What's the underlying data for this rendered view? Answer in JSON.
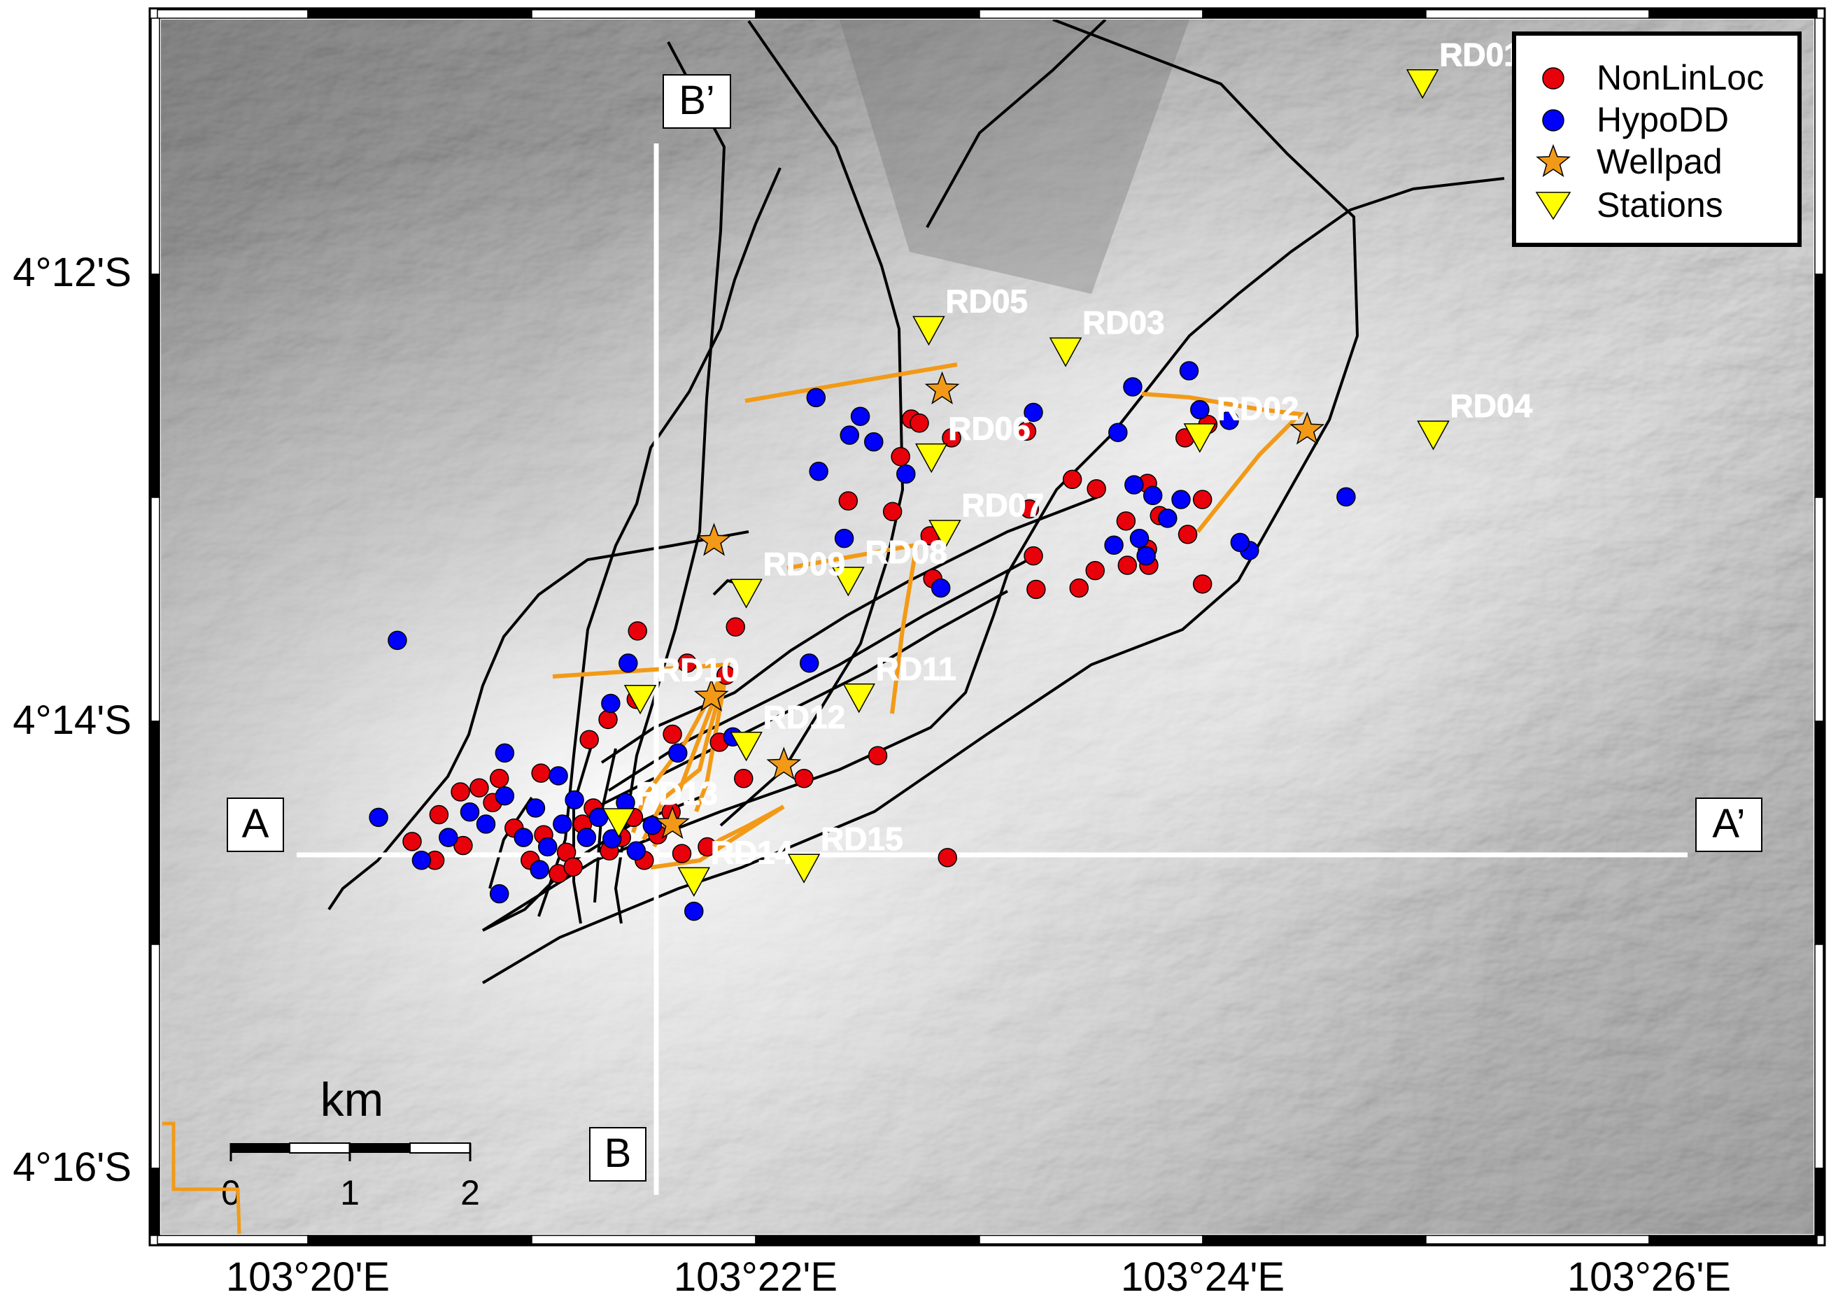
{
  "axes": {
    "x_ticks": [
      "103°20'E",
      "103°22'E",
      "103°24'E",
      "103°26'E"
    ],
    "y_ticks": [
      "4°12'S",
      "4°14'S",
      "4°16'S"
    ]
  },
  "legend": {
    "items": [
      {
        "label": "NonLinLoc",
        "color": "#e8000b",
        "symbol": "circle"
      },
      {
        "label": "HypoDD",
        "color": "#0000ff",
        "symbol": "circle"
      },
      {
        "label": "Wellpad",
        "color": "#f29a17",
        "symbol": "star"
      },
      {
        "label": "Stations",
        "color": "#ffff00",
        "symbol": "inverted-triangle"
      }
    ]
  },
  "profiles": {
    "a_start": "A",
    "a_end": "A’",
    "b_start": "B",
    "b_end": "B’"
  },
  "scale_bar": {
    "unit": "km",
    "labels": [
      "0",
      "1",
      "2"
    ]
  },
  "stations": [
    {
      "name": "RD01",
      "lon": 103.4164,
      "lat": -4.1858
    },
    {
      "name": "RD02",
      "lon": 103.3998,
      "lat": -4.2122
    },
    {
      "name": "RD03",
      "lon": 103.3898,
      "lat": -4.2058
    },
    {
      "name": "RD04",
      "lon": 103.4172,
      "lat": -4.212
    },
    {
      "name": "RD05",
      "lon": 103.3796,
      "lat": -4.2042
    },
    {
      "name": "RD06",
      "lon": 103.3798,
      "lat": -4.2137
    },
    {
      "name": "RD07",
      "lon": 103.3808,
      "lat": -4.2194
    },
    {
      "name": "RD08",
      "lon": 103.3736,
      "lat": -4.2229
    },
    {
      "name": "RD09",
      "lon": 103.366,
      "lat": -4.2238
    },
    {
      "name": "RD10",
      "lon": 103.3581,
      "lat": -4.2317
    },
    {
      "name": "RD11",
      "lon": 103.3744,
      "lat": -4.2316
    },
    {
      "name": "RD12",
      "lon": 103.366,
      "lat": -4.2352
    },
    {
      "name": "RD13",
      "lon": 103.3565,
      "lat": -4.2409
    },
    {
      "name": "RD14",
      "lon": 103.3621,
      "lat": -4.2453
    },
    {
      "name": "RD15",
      "lon": 103.3703,
      "lat": -4.2443
    }
  ],
  "wellpads": [
    {
      "lon": 103.3806,
      "lat": -4.2086
    },
    {
      "lon": 103.4078,
      "lat": -4.2116
    },
    {
      "lon": 103.3636,
      "lat": -4.2199
    },
    {
      "lon": 103.3634,
      "lat": -4.2315
    },
    {
      "lon": 103.3688,
      "lat": -4.2366
    },
    {
      "lon": 103.3605,
      "lat": -4.241
    }
  ],
  "events_nonlinloc": [
    [
      103.3411,
      -4.2423
    ],
    [
      103.3431,
      -4.2403
    ],
    [
      103.3447,
      -4.2386
    ],
    [
      103.3461,
      -4.2383
    ],
    [
      103.3471,
      -4.2394
    ],
    [
      103.3487,
      -4.2413
    ],
    [
      103.3499,
      -4.2437
    ],
    [
      103.3509,
      -4.2418
    ],
    [
      103.352,
      -4.2447
    ],
    [
      103.3526,
      -4.2431
    ],
    [
      103.3538,
      -4.241
    ],
    [
      103.3546,
      -4.2398
    ],
    [
      103.3558,
      -4.243
    ],
    [
      103.3567,
      -4.242
    ],
    [
      103.3576,
      -4.2405
    ],
    [
      103.3584,
      -4.2437
    ],
    [
      103.3594,
      -4.2418
    ],
    [
      103.3604,
      -4.2401
    ],
    [
      103.3612,
      -4.2432
    ],
    [
      103.3631,
      -4.2427
    ],
    [
      103.3428,
      -4.2437
    ],
    [
      103.3449,
      -4.2426
    ],
    [
      103.3476,
      -4.2376
    ],
    [
      103.3507,
      -4.2372
    ],
    [
      103.3531,
      -4.2442
    ],
    [
      103.3543,
      -4.2347
    ],
    [
      103.3557,
      -4.2332
    ],
    [
      103.3578,
      -4.2317
    ],
    [
      103.3605,
      -4.2343
    ],
    [
      103.364,
      -4.2349
    ],
    [
      103.3658,
      -4.2376
    ],
    [
      103.3703,
      -4.2376
    ],
    [
      103.3758,
      -4.2359
    ],
    [
      103.381,
      -4.2435
    ],
    [
      103.3616,
      -4.229
    ],
    [
      103.3645,
      -4.2299
    ],
    [
      103.3652,
      -4.2263
    ],
    [
      103.3579,
      -4.2266
    ],
    [
      103.3736,
      -4.2169
    ],
    [
      103.3783,
      -4.2108
    ],
    [
      103.3789,
      -4.2111
    ],
    [
      103.3775,
      -4.2136
    ],
    [
      103.3769,
      -4.2177
    ],
    [
      103.3797,
      -4.2195
    ],
    [
      103.3799,
      -4.2227
    ],
    [
      103.3813,
      -4.2122
    ],
    [
      103.3869,
      -4.2117
    ],
    [
      103.3871,
      -4.2175
    ],
    [
      103.3874,
      -4.221
    ],
    [
      103.3876,
      -4.2235
    ],
    [
      103.3903,
      -4.2153
    ],
    [
      103.3908,
      -4.2234
    ],
    [
      103.392,
      -4.2221
    ],
    [
      103.3944,
      -4.2217
    ],
    [
      103.3959,
      -4.2205
    ],
    [
      103.3959,
      -4.2156
    ],
    [
      103.3968,
      -4.218
    ],
    [
      103.3989,
      -4.2194
    ],
    [
      103.4,
      -4.2168
    ],
    [
      103.4004,
      -4.2112
    ],
    [
      103.3987,
      -4.2122
    ],
    [
      103.396,
      -4.2217
    ],
    [
      103.4,
      -4.2231
    ],
    [
      103.3943,
      -4.2184
    ],
    [
      103.3921,
      -4.216
    ]
  ],
  "events_hypodd": [
    [
      103.3386,
      -4.2405
    ],
    [
      103.3418,
      -4.2437
    ],
    [
      103.3438,
      -4.242
    ],
    [
      103.3454,
      -4.2401
    ],
    [
      103.3466,
      -4.241
    ],
    [
      103.348,
      -4.2389
    ],
    [
      103.3494,
      -4.242
    ],
    [
      103.3503,
      -4.2398
    ],
    [
      103.3512,
      -4.2427
    ],
    [
      103.3523,
      -4.241
    ],
    [
      103.3532,
      -4.2392
    ],
    [
      103.3541,
      -4.242
    ],
    [
      103.355,
      -4.2405
    ],
    [
      103.356,
      -4.2421
    ],
    [
      103.357,
      -4.2394
    ],
    [
      103.3578,
      -4.243
    ],
    [
      103.359,
      -4.2411
    ],
    [
      103.3506,
      -4.2444
    ],
    [
      103.3476,
      -4.2462
    ],
    [
      103.3621,
      -4.2475
    ],
    [
      103.348,
      -4.2357
    ],
    [
      103.352,
      -4.2374
    ],
    [
      103.3559,
      -4.232
    ],
    [
      103.3609,
      -4.2357
    ],
    [
      103.3572,
      -4.229
    ],
    [
      103.34,
      -4.2273
    ],
    [
      103.365,
      -4.2345
    ],
    [
      103.3707,
      -4.229
    ],
    [
      103.3733,
      -4.2197
    ],
    [
      103.3714,
      -4.2147
    ],
    [
      103.3712,
      -4.2092
    ],
    [
      103.3745,
      -4.2106
    ],
    [
      103.3737,
      -4.212
    ],
    [
      103.3755,
      -4.2125
    ],
    [
      103.3779,
      -4.2149
    ],
    [
      103.3874,
      -4.2103
    ],
    [
      103.3948,
      -4.2084
    ],
    [
      103.3937,
      -4.2118
    ],
    [
      103.3949,
      -4.2157
    ],
    [
      103.3953,
      -4.2197
    ],
    [
      103.3958,
      -4.221
    ],
    [
      103.3963,
      -4.2165
    ],
    [
      103.3974,
      -4.2182
    ],
    [
      103.3984,
      -4.2168
    ],
    [
      103.399,
      -4.2072
    ],
    [
      103.3998,
      -4.2101
    ],
    [
      103.402,
      -4.2109
    ],
    [
      103.4035,
      -4.2206
    ],
    [
      103.4028,
      -4.22
    ],
    [
      103.4107,
      -4.2166
    ],
    [
      103.3805,
      -4.2234
    ],
    [
      103.3934,
      -4.2202
    ]
  ]
}
